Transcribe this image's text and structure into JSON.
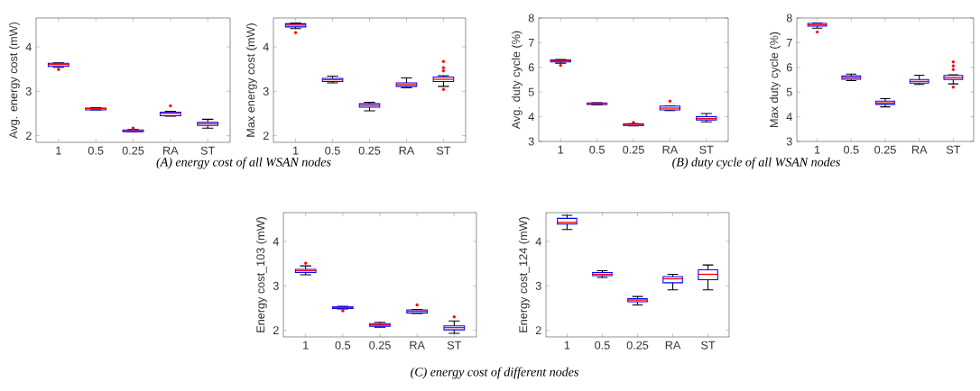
{
  "chart_data": [
    {
      "type": "box",
      "ylabel": "Avg. energy cost (mW)",
      "categories": [
        "1",
        "0.5",
        "0.25",
        "RA",
        "ST"
      ],
      "ylim": [
        1.85,
        4.65
      ],
      "yticks": [
        2,
        3,
        4
      ],
      "annotations": [
        "(A) energy cost of all WSAN nodes"
      ],
      "series": [
        {
          "color": "#0000ff",
          "boxes": [
            {
              "low": 3.54,
              "q1": 3.56,
              "median": 3.6,
              "q3": 3.63,
              "high": 3.64,
              "outliers": [
                3.49
              ]
            },
            {
              "low": 2.58,
              "q1": 2.58,
              "median": 2.61,
              "q3": 2.62,
              "high": 2.63
            },
            {
              "low": 2.09,
              "q1": 2.09,
              "median": 2.1,
              "q3": 2.13,
              "high": 2.14,
              "outliers": [
                2.17
              ]
            },
            {
              "low": 2.44,
              "q1": 2.45,
              "median": 2.5,
              "q3": 2.53,
              "high": 2.55,
              "outliers": [
                2.67
              ]
            },
            {
              "low": 2.17,
              "q1": 2.23,
              "median": 2.27,
              "q3": 2.3,
              "high": 2.37
            }
          ]
        }
      ]
    },
    {
      "type": "box",
      "ylabel": "Max energy cost (mW)",
      "categories": [
        "1",
        "0.5",
        "0.25",
        "RA",
        "ST"
      ],
      "ylim": [
        1.85,
        4.65
      ],
      "yticks": [
        2,
        3,
        4
      ],
      "series": [
        {
          "color": "#0000ff",
          "boxes": [
            {
              "low": 4.41,
              "q1": 4.45,
              "median": 4.49,
              "q3": 4.52,
              "high": 4.54,
              "outliers": [
                4.32
              ]
            },
            {
              "low": 3.19,
              "q1": 3.22,
              "median": 3.26,
              "q3": 3.29,
              "high": 3.34
            },
            {
              "low": 2.56,
              "q1": 2.64,
              "median": 2.68,
              "q3": 2.72,
              "high": 2.75
            },
            {
              "low": 3.08,
              "q1": 3.11,
              "median": 3.15,
              "q3": 3.19,
              "high": 3.3
            },
            {
              "low": 3.11,
              "q1": 3.22,
              "median": 3.27,
              "q3": 3.32,
              "high": 3.35,
              "outliers": [
                3.67,
                3.53,
                3.46,
                3.04
              ]
            }
          ]
        }
      ]
    },
    {
      "type": "box",
      "ylabel": "Avg. duty cycle (%)",
      "categories": [
        "1",
        "0.5",
        "0.25",
        "RA",
        "ST"
      ],
      "ylim": [
        3,
        8
      ],
      "yticks": [
        3,
        4,
        5,
        6,
        7,
        8
      ],
      "annotations": [
        "(B) duty cycle of all WSAN nodes"
      ],
      "series": [
        {
          "color": "#0000ff",
          "boxes": [
            {
              "low": 6.17,
              "q1": 6.22,
              "median": 6.26,
              "q3": 6.3,
              "high": 6.32,
              "outliers": [
                6.08
              ]
            },
            {
              "low": 4.49,
              "q1": 4.5,
              "median": 4.53,
              "q3": 4.56,
              "high": 4.57
            },
            {
              "low": 3.63,
              "q1": 3.64,
              "median": 3.66,
              "q3": 3.71,
              "high": 3.72,
              "outliers": [
                3.77
              ]
            },
            {
              "low": 4.25,
              "q1": 4.28,
              "median": 4.35,
              "q3": 4.43,
              "high": 4.44,
              "outliers": [
                4.63
              ]
            },
            {
              "low": 3.79,
              "q1": 3.87,
              "median": 3.93,
              "q3": 4.0,
              "high": 4.13
            }
          ]
        }
      ]
    },
    {
      "type": "box",
      "ylabel": "Max duty cycle (%)",
      "categories": [
        "1",
        "0.5",
        "0.25",
        "RA",
        "ST"
      ],
      "ylim": [
        3,
        8
      ],
      "yticks": [
        3,
        4,
        5,
        6,
        7,
        8
      ],
      "series": [
        {
          "color": "#0000ff",
          "boxes": [
            {
              "low": 7.59,
              "q1": 7.67,
              "median": 7.72,
              "q3": 7.78,
              "high": 7.8,
              "outliers": [
                7.43
              ]
            },
            {
              "low": 5.46,
              "q1": 5.52,
              "median": 5.58,
              "q3": 5.65,
              "high": 5.73
            },
            {
              "low": 4.4,
              "q1": 4.5,
              "median": 4.56,
              "q3": 4.63,
              "high": 4.73
            },
            {
              "low": 5.31,
              "q1": 5.36,
              "median": 5.43,
              "q3": 5.51,
              "high": 5.68
            },
            {
              "low": 5.33,
              "q1": 5.51,
              "median": 5.58,
              "q3": 5.67,
              "high": 5.7,
              "outliers": [
                6.22,
                6.06,
                5.91,
                5.2
              ]
            }
          ]
        }
      ]
    },
    {
      "type": "box",
      "ylabel": "Energy cost_103 (mW)",
      "categories": [
        "1",
        "0.5",
        "0.25",
        "RA",
        "ST"
      ],
      "ylim": [
        1.85,
        4.65
      ],
      "yticks": [
        2,
        3,
        4
      ],
      "annotations": [
        "(C) energy cost of different nodes"
      ],
      "series": [
        {
          "color": "#0000ff",
          "boxes": [
            {
              "low": 3.25,
              "q1": 3.3,
              "median": 3.34,
              "q3": 3.37,
              "high": 3.45,
              "outliers": [
                3.51
              ]
            },
            {
              "low": 2.48,
              "q1": 2.49,
              "median": 2.51,
              "q3": 2.53,
              "high": 2.54,
              "outliers": [
                2.44
              ]
            },
            {
              "low": 2.07,
              "q1": 2.09,
              "median": 2.12,
              "q3": 2.15,
              "high": 2.18
            },
            {
              "low": 2.38,
              "q1": 2.39,
              "median": 2.43,
              "q3": 2.46,
              "high": 2.47,
              "outliers": [
                2.57
              ]
            },
            {
              "low": 1.93,
              "q1": 2.01,
              "median": 2.06,
              "q3": 2.1,
              "high": 2.21,
              "outliers": [
                2.3
              ]
            }
          ]
        }
      ]
    },
    {
      "type": "box",
      "ylabel": "Energy cost_124 (mW)",
      "categories": [
        "1",
        "0.5",
        "0.25",
        "RA",
        "ST"
      ],
      "ylim": [
        1.85,
        4.65
      ],
      "yticks": [
        2,
        3,
        4
      ],
      "series": [
        {
          "color": "#0000ff",
          "boxes": [
            {
              "low": 4.27,
              "q1": 4.39,
              "median": 4.43,
              "q3": 4.52,
              "high": 4.59
            },
            {
              "low": 3.19,
              "q1": 3.23,
              "median": 3.26,
              "q3": 3.3,
              "high": 3.34
            },
            {
              "low": 2.57,
              "q1": 2.64,
              "median": 2.68,
              "q3": 2.71,
              "high": 2.76
            },
            {
              "low": 2.91,
              "q1": 3.07,
              "median": 3.16,
              "q3": 3.21,
              "high": 3.26
            },
            {
              "low": 2.91,
              "q1": 3.14,
              "median": 3.26,
              "q3": 3.36,
              "high": 3.47
            }
          ]
        }
      ]
    }
  ]
}
